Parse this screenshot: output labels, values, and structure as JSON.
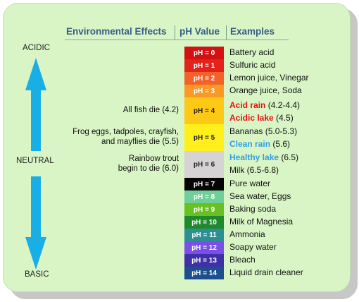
{
  "headers": {
    "effects": "Environmental Effects",
    "ph_value": "pH Value",
    "examples": "Examples"
  },
  "side_labels": {
    "acidic": "ACIDIC",
    "neutral": "NEUTRAL",
    "basic": "BASIC"
  },
  "colors": {
    "background": "#d9f5c6",
    "header_text": "#355d86",
    "arrow": "#19aee6",
    "highlight_red": "#e8120e",
    "highlight_blue": "#2f9ee4"
  },
  "scale": [
    {
      "label": "pH = 0",
      "color": "#d21212",
      "text_color": "#ffffff"
    },
    {
      "label": "pH = 1",
      "color": "#e2231c",
      "text_color": "#ffffff"
    },
    {
      "label": "pH = 2",
      "color": "#f2622a",
      "text_color": "#ffffff"
    },
    {
      "label": "pH = 3",
      "color": "#fb9826",
      "text_color": "#ffffff"
    },
    {
      "label": "pH = 4",
      "color": "#fec915",
      "text_color": "#222222"
    },
    {
      "label": "pH = 5",
      "color": "#fff01c",
      "text_color": "#222222"
    },
    {
      "label": "pH = 6",
      "color": "#d6d3d4",
      "text_color": "#222222"
    },
    {
      "label": "pH = 7",
      "color": "#050505",
      "text_color": "#ffffff"
    },
    {
      "label": "pH = 8",
      "color": "#6fcf98",
      "text_color": "#ffffff"
    },
    {
      "label": "pH = 9",
      "color": "#68c022",
      "text_color": "#ffffff"
    },
    {
      "label": "pH = 10",
      "color": "#1f8a2c",
      "text_color": "#ffffff"
    },
    {
      "label": "pH = 11",
      "color": "#2d8f91",
      "text_color": "#ffffff"
    },
    {
      "label": "pH = 12",
      "color": "#7a4fe8",
      "text_color": "#ffffff"
    },
    {
      "label": "pH = 13",
      "color": "#4030a8",
      "text_color": "#ffffff"
    },
    {
      "label": "pH = 14",
      "color": "#1d4f8c",
      "text_color": "#ffffff"
    }
  ],
  "examples": [
    {
      "text": "Battery acid"
    },
    {
      "text": "Sulfuric acid"
    },
    {
      "text": "Lemon juice, Vinegar"
    },
    {
      "text": "Orange juice, Soda"
    },
    {
      "em": "Acid rain",
      "text": " (4.2-4.4)",
      "em_color": "#e8120e"
    },
    {
      "em": "Acidic lake",
      "text": " (4.5)",
      "em_color": "#e8120e"
    },
    {
      "text": "Bananas (5.0-5.3)"
    },
    {
      "em": "Clean rain",
      "text": " (5.6)",
      "em_color": "#2f9ee4"
    },
    {
      "em": "Healthy lake",
      "text": " (6.5)",
      "em_color": "#2f9ee4"
    },
    {
      "text": "Milk (6.5-6.8)"
    },
    {
      "text": "Pure water"
    },
    {
      "text": "Sea water, Eggs"
    },
    {
      "text": "Baking soda"
    },
    {
      "text": "Milk of Magnesia"
    },
    {
      "text": "Ammonia"
    },
    {
      "text": "Soapy water"
    },
    {
      "text": "Bleach"
    },
    {
      "text": "Liquid drain cleaner"
    }
  ],
  "effects": [
    {
      "lines": [
        "All fish die (4.2)"
      ]
    },
    {
      "lines": [
        "Frog eggs, tadpoles, crayfish,",
        "and mayflies die (5.5)"
      ]
    },
    {
      "lines": [
        "Rainbow trout",
        "begin to die (6.0)"
      ]
    }
  ]
}
